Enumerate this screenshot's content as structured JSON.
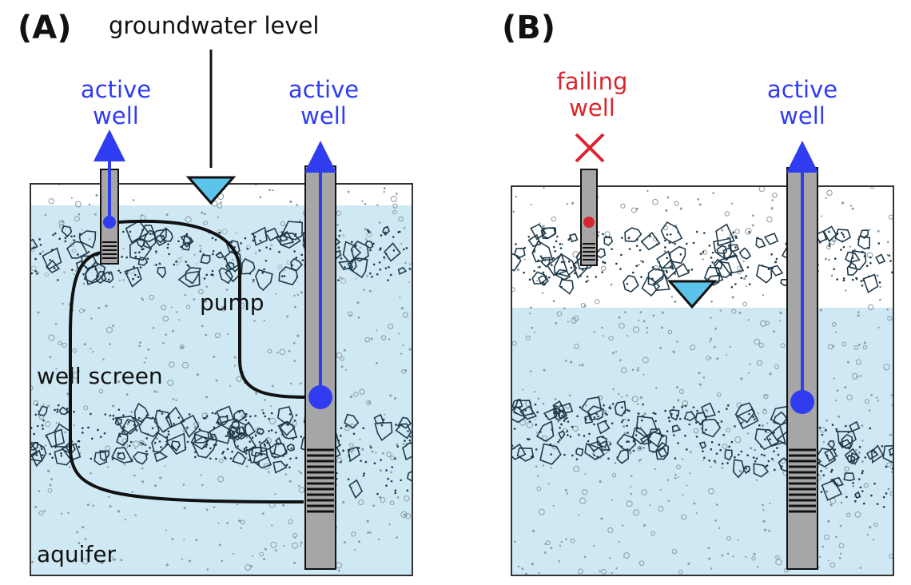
{
  "panel_a": {
    "letter": "(A)",
    "groundwater_label": "groundwater level",
    "well_left": {
      "line1": "active",
      "line2": "well"
    },
    "well_right": {
      "line1": "active",
      "line2": "well"
    },
    "pump_label": "pump",
    "screen_label": "well screen",
    "aquifer_label": "aquifer"
  },
  "panel_b": {
    "letter": "(B)",
    "well_left": {
      "line1": "failing",
      "line2": "well"
    },
    "well_right": {
      "line1": "active",
      "line2": "well"
    }
  },
  "colors": {
    "water": "#cfe9f4",
    "active": "#2f3cf0",
    "failing": "#d9262e",
    "pipe": "#a6a6a6",
    "triangle": "#5cc3ea",
    "gravel": "#1f3a4a"
  }
}
